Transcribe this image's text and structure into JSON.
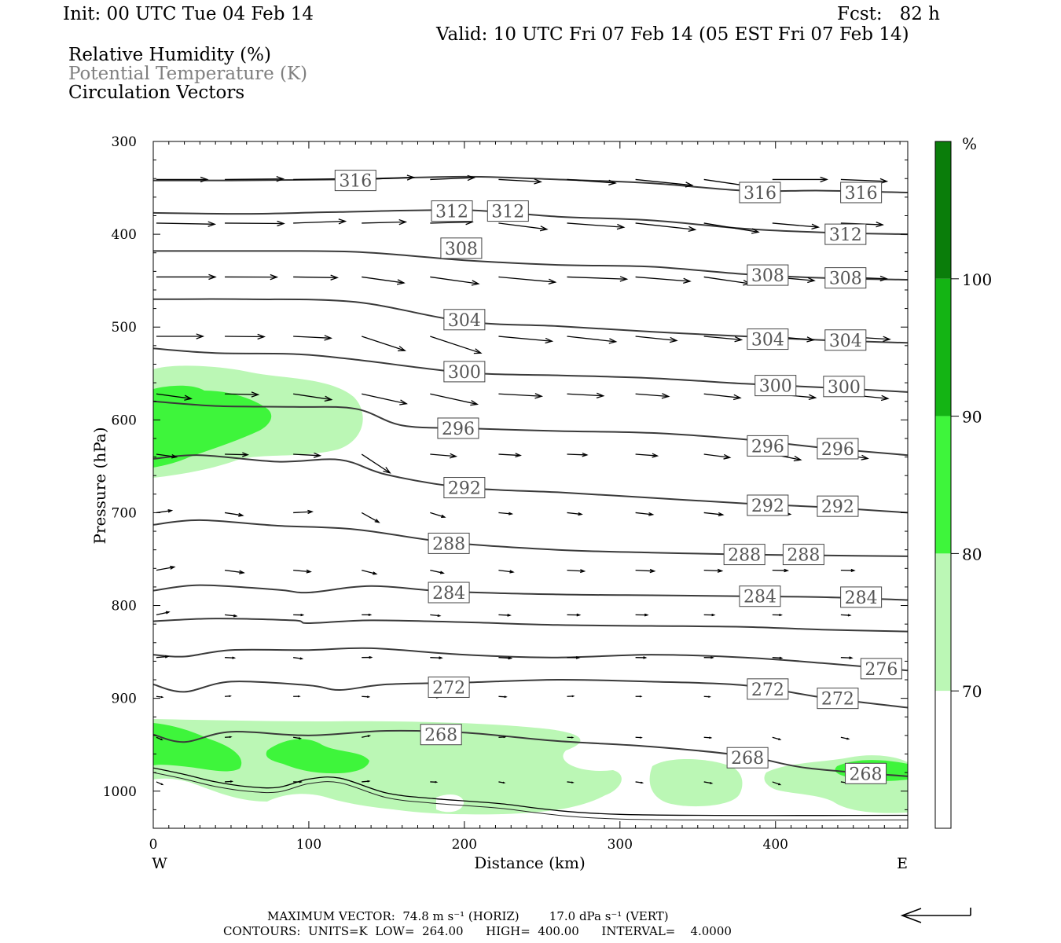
{
  "header": {
    "init": "Init: 00 UTC Tue 04 Feb 14",
    "fcst": "Fcst:   82 h",
    "valid": "Valid: 10 UTC Fri 07 Feb 14 (05 EST Fri 07 Feb 14)",
    "legend_rh": "Relative Humidity (%)",
    "legend_theta": "Potential Temperature (K)",
    "legend_vec": "Circulation Vectors"
  },
  "footer": {
    "max_vector": "MAXIMUM VECTOR:  74.8 m s⁻¹ (HORIZ)        17.0 dPa s⁻¹ (VERT)",
    "contours": "CONTOURS:  UNITS=K  LOW=  264.00      HIGH=  400.00      INTERVAL=    4.0000"
  },
  "colors": {
    "rh70": "#bbf7b5",
    "rh80": "#3ef53b",
    "rh90": "#14b414",
    "rh100": "#0a7d0a",
    "contour": "#3a3a3a"
  },
  "chart_data": {
    "type": "contour-cross-section",
    "xlabel": "Distance (km)",
    "ylabel": "Pressure (hPa)",
    "xlim": [
      0,
      485
    ],
    "ylim": [
      1040,
      300
    ],
    "x_ticks": [
      0,
      100,
      200,
      300,
      400
    ],
    "y_ticks": [
      300,
      400,
      500,
      600,
      700,
      800,
      900,
      1000
    ],
    "x_end_labels": {
      "left": "W",
      "right": "E"
    },
    "colorbar": {
      "unit": "%",
      "levels": [
        70,
        80,
        90,
        100
      ]
    },
    "theta_contours": [
      {
        "value": 316,
        "labels": [
          [
            130,
            342
          ],
          [
            390,
            355
          ],
          [
            455,
            355
          ]
        ],
        "points": [
          [
            0,
            342
          ],
          [
            50,
            342
          ],
          [
            120,
            341
          ],
          [
            200,
            338
          ],
          [
            260,
            341
          ],
          [
            320,
            345
          ],
          [
            380,
            353
          ],
          [
            430,
            353
          ],
          [
            485,
            355
          ]
        ]
      },
      {
        "value": 312,
        "labels": [
          [
            192,
            375
          ],
          [
            228,
            375
          ],
          [
            445,
            400
          ]
        ],
        "points": [
          [
            0,
            377
          ],
          [
            60,
            378
          ],
          [
            120,
            376
          ],
          [
            200,
            374
          ],
          [
            260,
            381
          ],
          [
            320,
            385
          ],
          [
            380,
            394
          ],
          [
            430,
            398
          ],
          [
            485,
            400
          ]
        ]
      },
      {
        "value": 308,
        "labels": [
          [
            198,
            415
          ],
          [
            395,
            444
          ],
          [
            445,
            447
          ]
        ],
        "points": [
          [
            0,
            418
          ],
          [
            60,
            418
          ],
          [
            130,
            419
          ],
          [
            200,
            428
          ],
          [
            260,
            433
          ],
          [
            320,
            435
          ],
          [
            380,
            443
          ],
          [
            430,
            447
          ],
          [
            485,
            449
          ]
        ]
      },
      {
        "value": 304,
        "labels": [
          [
            200,
            492
          ],
          [
            395,
            513
          ],
          [
            445,
            514
          ]
        ],
        "points": [
          [
            0,
            470
          ],
          [
            60,
            470
          ],
          [
            130,
            473
          ],
          [
            200,
            494
          ],
          [
            260,
            499
          ],
          [
            320,
            505
          ],
          [
            380,
            510
          ],
          [
            430,
            514
          ],
          [
            485,
            517
          ]
        ]
      },
      {
        "value": 300,
        "labels": [
          [
            200,
            548
          ],
          [
            400,
            563
          ],
          [
            444,
            564
          ]
        ],
        "points": [
          [
            0,
            523
          ],
          [
            40,
            528
          ],
          [
            90,
            529
          ],
          [
            130,
            535
          ],
          [
            200,
            549
          ],
          [
            260,
            552
          ],
          [
            320,
            555
          ],
          [
            380,
            561
          ],
          [
            430,
            565
          ],
          [
            485,
            570
          ]
        ]
      },
      {
        "value": 296,
        "labels": [
          [
            196,
            609
          ],
          [
            395,
            628
          ],
          [
            440,
            631
          ]
        ],
        "points": [
          [
            0,
            580
          ],
          [
            40,
            585
          ],
          [
            90,
            586
          ],
          [
            130,
            588
          ],
          [
            160,
            606
          ],
          [
            200,
            609
          ],
          [
            260,
            612
          ],
          [
            320,
            614
          ],
          [
            380,
            621
          ],
          [
            430,
            630
          ],
          [
            485,
            638
          ]
        ]
      },
      {
        "value": 292,
        "labels": [
          [
            200,
            673
          ],
          [
            395,
            692
          ],
          [
            440,
            693
          ]
        ],
        "points": [
          [
            0,
            642
          ],
          [
            30,
            638
          ],
          [
            80,
            645
          ],
          [
            120,
            643
          ],
          [
            150,
            659
          ],
          [
            200,
            673
          ],
          [
            260,
            678
          ],
          [
            320,
            684
          ],
          [
            380,
            690
          ],
          [
            430,
            694
          ],
          [
            485,
            700
          ]
        ]
      },
      {
        "value": 288,
        "labels": [
          [
            190,
            733
          ],
          [
            380,
            745
          ],
          [
            418,
            745
          ]
        ],
        "points": [
          [
            0,
            713
          ],
          [
            30,
            708
          ],
          [
            80,
            714
          ],
          [
            130,
            718
          ],
          [
            190,
            732
          ],
          [
            260,
            740
          ],
          [
            320,
            743
          ],
          [
            380,
            745
          ],
          [
            430,
            746
          ],
          [
            485,
            747
          ]
        ]
      },
      {
        "value": 284,
        "labels": [
          [
            190,
            786
          ],
          [
            390,
            790
          ],
          [
            455,
            791
          ]
        ],
        "points": [
          [
            0,
            784
          ],
          [
            30,
            778
          ],
          [
            80,
            783
          ],
          [
            100,
            786
          ],
          [
            140,
            779
          ],
          [
            190,
            785
          ],
          [
            260,
            788
          ],
          [
            320,
            789
          ],
          [
            380,
            790
          ],
          [
            430,
            791
          ],
          [
            485,
            794
          ]
        ]
      },
      {
        "value": 280,
        "labels": [],
        "points": [
          [
            0,
            817
          ],
          [
            40,
            814
          ],
          [
            90,
            816
          ],
          [
            100,
            819
          ],
          [
            140,
            816
          ],
          [
            200,
            818
          ],
          [
            260,
            821
          ],
          [
            320,
            822
          ],
          [
            380,
            823
          ],
          [
            430,
            826
          ],
          [
            485,
            828
          ]
        ]
      },
      {
        "value": 276,
        "labels": [
          [
            468,
            868
          ]
        ],
        "points": [
          [
            0,
            853
          ],
          [
            20,
            855
          ],
          [
            50,
            848
          ],
          [
            100,
            848
          ],
          [
            140,
            846
          ],
          [
            200,
            853
          ],
          [
            260,
            856
          ],
          [
            320,
            853
          ],
          [
            380,
            856
          ],
          [
            430,
            862
          ],
          [
            485,
            870
          ]
        ]
      },
      {
        "value": 272,
        "labels": [
          [
            190,
            888
          ],
          [
            395,
            890
          ],
          [
            440,
            900
          ]
        ],
        "points": [
          [
            0,
            885
          ],
          [
            20,
            893
          ],
          [
            50,
            882
          ],
          [
            100,
            886
          ],
          [
            120,
            891
          ],
          [
            150,
            885
          ],
          [
            200,
            883
          ],
          [
            260,
            880
          ],
          [
            320,
            882
          ],
          [
            380,
            886
          ],
          [
            430,
            899
          ],
          [
            485,
            910
          ]
        ]
      },
      {
        "value": 268,
        "labels": [
          [
            185,
            939
          ],
          [
            382,
            964
          ],
          [
            458,
            981
          ]
        ],
        "points": [
          [
            0,
            939
          ],
          [
            20,
            947
          ],
          [
            50,
            936
          ],
          [
            100,
            940
          ],
          [
            150,
            935
          ],
          [
            200,
            937
          ],
          [
            260,
            946
          ],
          [
            320,
            952
          ],
          [
            380,
            962
          ],
          [
            420,
            975
          ],
          [
            485,
            984
          ]
        ]
      }
    ],
    "terrain": [
      [
        0,
        975
      ],
      [
        20,
        982
      ],
      [
        40,
        990
      ],
      [
        60,
        995
      ],
      [
        80,
        996
      ],
      [
        100,
        987
      ],
      [
        120,
        986
      ],
      [
        150,
        1002
      ],
      [
        180,
        1008
      ],
      [
        220,
        1013
      ],
      [
        300,
        1025
      ],
      [
        485,
        1026
      ]
    ]
  }
}
